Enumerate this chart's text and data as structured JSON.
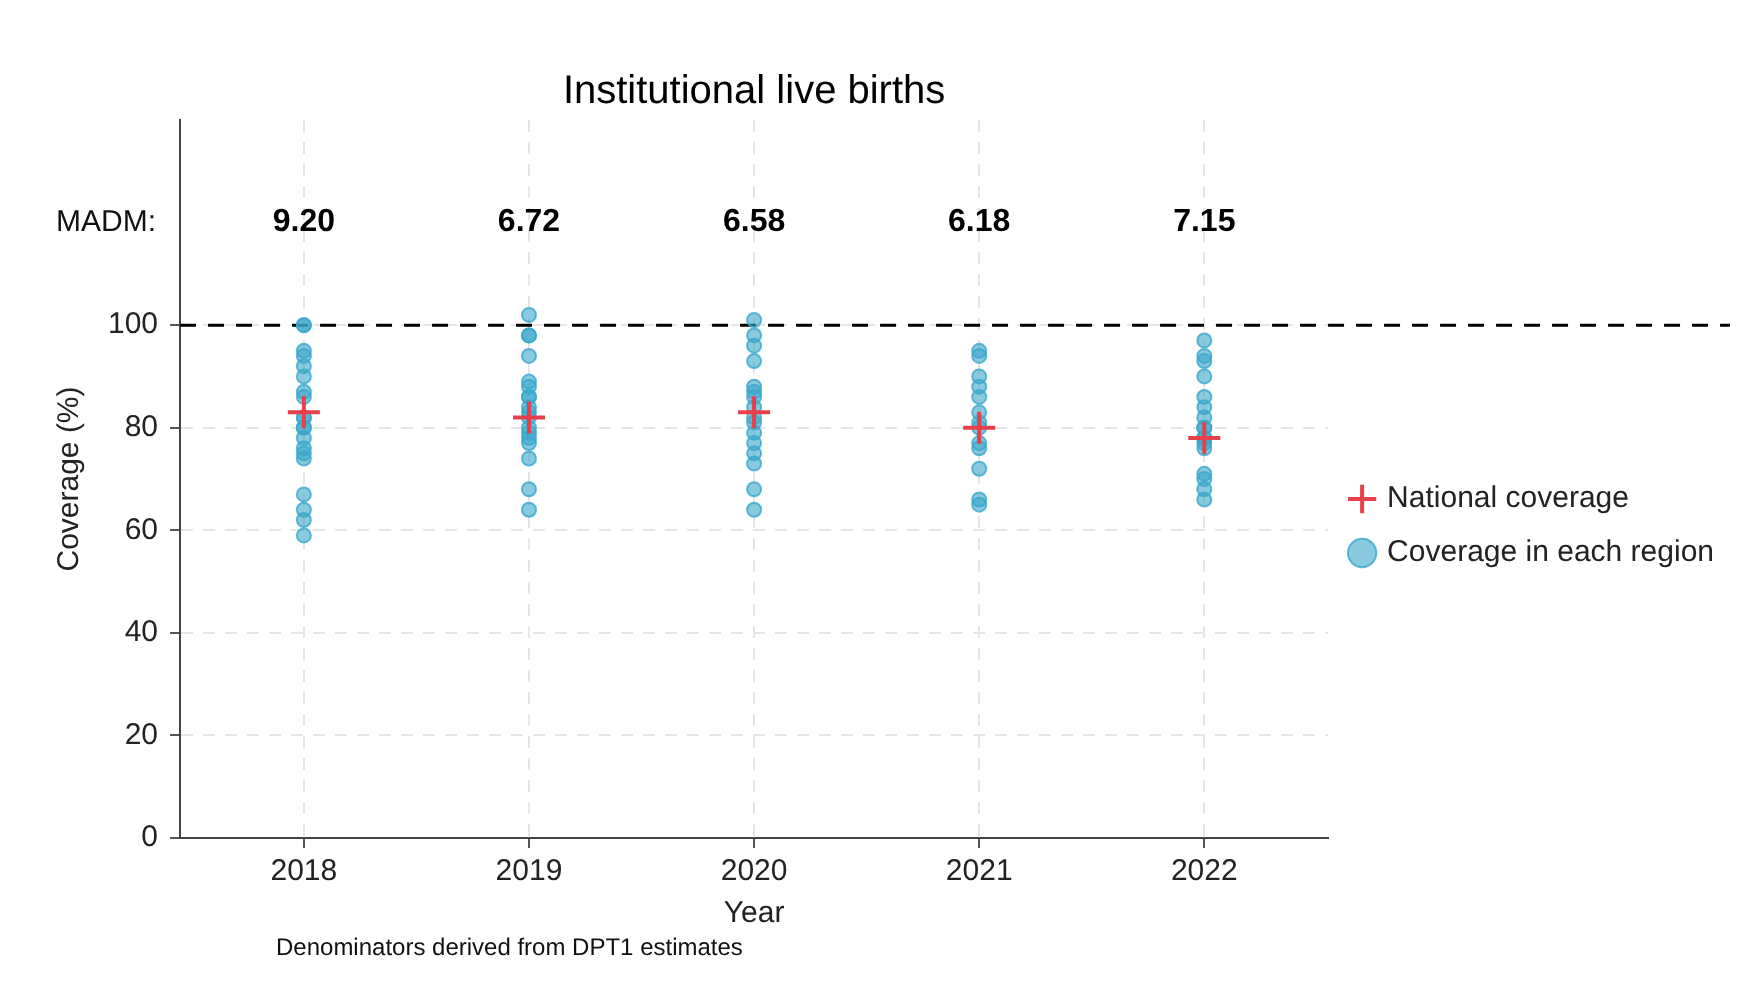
{
  "chart_data": {
    "type": "scatter",
    "title": "Institutional live births",
    "xlabel": "Year",
    "ylabel": "Coverage (%)",
    "xlim": [
      2017.45,
      2022.55
    ],
    "xticks": [
      2018,
      2019,
      2020,
      2021,
      2022
    ],
    "ylim": [
      0,
      140
    ],
    "yticks": [
      0,
      20,
      40,
      60,
      80,
      100
    ],
    "grid": true,
    "legend": "right",
    "series": [
      {
        "name": "Coverage in each region",
        "color": "#3aa7cc",
        "marker": "circle",
        "x": [
          2018,
          2018,
          2018,
          2018,
          2018,
          2018,
          2018,
          2018,
          2018,
          2018,
          2018,
          2018,
          2018,
          2018,
          2018,
          2018,
          2018,
          2018,
          2018,
          2018,
          2019,
          2019,
          2019,
          2019,
          2019,
          2019,
          2019,
          2019,
          2019,
          2019,
          2019,
          2019,
          2019,
          2019,
          2019,
          2019,
          2019,
          2019,
          2020,
          2020,
          2020,
          2020,
          2020,
          2020,
          2020,
          2020,
          2020,
          2020,
          2020,
          2020,
          2020,
          2020,
          2020,
          2020,
          2021,
          2021,
          2021,
          2021,
          2021,
          2021,
          2021,
          2021,
          2021,
          2021,
          2021,
          2021,
          2021,
          2022,
          2022,
          2022,
          2022,
          2022,
          2022,
          2022,
          2022,
          2022,
          2022,
          2022,
          2022,
          2022,
          2022,
          2022,
          2022,
          2022
        ],
        "values": [
          100,
          100,
          95,
          94,
          92,
          90,
          87,
          86,
          82,
          82,
          80,
          80,
          78,
          76,
          75,
          74,
          67,
          64,
          62,
          59,
          102,
          98,
          98,
          94,
          89,
          88,
          86,
          86,
          84,
          83,
          82,
          80,
          79,
          78,
          77,
          74,
          68,
          64,
          101,
          98,
          96,
          93,
          88,
          87,
          86,
          84,
          82,
          81,
          79,
          77,
          75,
          73,
          68,
          64,
          95,
          94,
          90,
          88,
          86,
          83,
          81,
          80,
          77,
          76,
          72,
          66,
          65,
          97,
          94,
          93,
          90,
          86,
          84,
          82,
          80,
          80,
          78,
          78,
          77,
          76,
          71,
          70,
          68,
          66
        ]
      },
      {
        "name": "National coverage",
        "color": "#e8404a",
        "marker": "cross",
        "x": [
          2018,
          2019,
          2020,
          2021,
          2022
        ],
        "values": [
          83,
          82,
          83,
          80,
          78
        ]
      }
    ],
    "ref_lines": [
      {
        "axis": "y",
        "value": 100,
        "color": "#000000",
        "line_style": "dashed"
      }
    ],
    "annotations": [
      "MADM:",
      "9.20",
      "6.72",
      "6.58",
      "6.18",
      "7.15",
      "Denominators derived from DPT1 estimates"
    ]
  }
}
